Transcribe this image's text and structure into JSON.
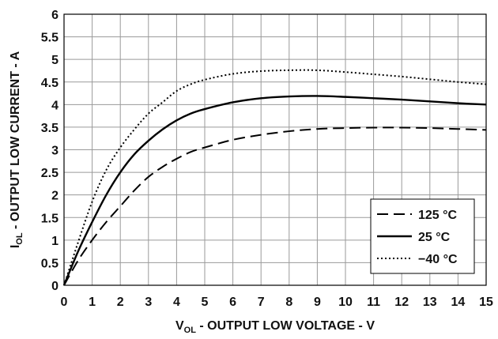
{
  "chart_data": {
    "type": "line",
    "xlabel": {
      "main": "V",
      "sub": "OL",
      "rest": " - OUTPUT LOW VOLTAGE - V"
    },
    "ylabel": {
      "main": "I",
      "sub": "OL",
      "rest": " - OUTPUT LOW CURRENT - A"
    },
    "xlim": [
      0,
      15
    ],
    "ylim": [
      0,
      6
    ],
    "x_ticks": [
      "0",
      "1",
      "2",
      "3",
      "4",
      "5",
      "6",
      "7",
      "8",
      "9",
      "10",
      "11",
      "12",
      "13",
      "14",
      "15"
    ],
    "y_ticks": [
      "0",
      "0.5",
      "1",
      "1.5",
      "2",
      "2.5",
      "3",
      "3.5",
      "4",
      "4.5",
      "5",
      "5.5",
      "6"
    ],
    "grid": true,
    "legend_position": "bottom-right",
    "series": [
      {
        "name": "125 °C",
        "style": "dashed",
        "color": "#000000",
        "x": [
          0,
          0.5,
          1,
          1.5,
          2,
          2.5,
          3,
          3.5,
          4,
          4.5,
          5,
          6,
          7,
          8,
          9,
          10,
          11,
          12,
          13,
          14,
          15
        ],
        "y": [
          0,
          0.55,
          1.0,
          1.4,
          1.75,
          2.1,
          2.4,
          2.62,
          2.8,
          2.95,
          3.05,
          3.22,
          3.33,
          3.41,
          3.46,
          3.48,
          3.49,
          3.49,
          3.48,
          3.46,
          3.44
        ]
      },
      {
        "name": "25 °C",
        "style": "solid",
        "color": "#000000",
        "x": [
          0,
          0.5,
          1,
          1.5,
          2,
          2.5,
          3,
          3.5,
          4,
          4.5,
          5,
          6,
          7,
          8,
          9,
          10,
          11,
          12,
          13,
          14,
          15
        ],
        "y": [
          0,
          0.75,
          1.4,
          2.0,
          2.5,
          2.9,
          3.2,
          3.45,
          3.65,
          3.8,
          3.9,
          4.05,
          4.14,
          4.18,
          4.19,
          4.17,
          4.14,
          4.11,
          4.07,
          4.03,
          4.0
        ]
      },
      {
        "name": "−40 °C",
        "style": "dotted",
        "color": "#000000",
        "x": [
          0,
          0.5,
          1,
          1.5,
          2,
          2.5,
          3,
          3.5,
          4,
          4.5,
          5,
          6,
          7,
          8,
          9,
          10,
          11,
          12,
          13,
          14,
          15
        ],
        "y": [
          0,
          0.95,
          1.85,
          2.55,
          3.05,
          3.45,
          3.8,
          4.05,
          4.3,
          4.45,
          4.55,
          4.68,
          4.74,
          4.76,
          4.76,
          4.72,
          4.67,
          4.62,
          4.56,
          4.5,
          4.45
        ]
      }
    ]
  }
}
